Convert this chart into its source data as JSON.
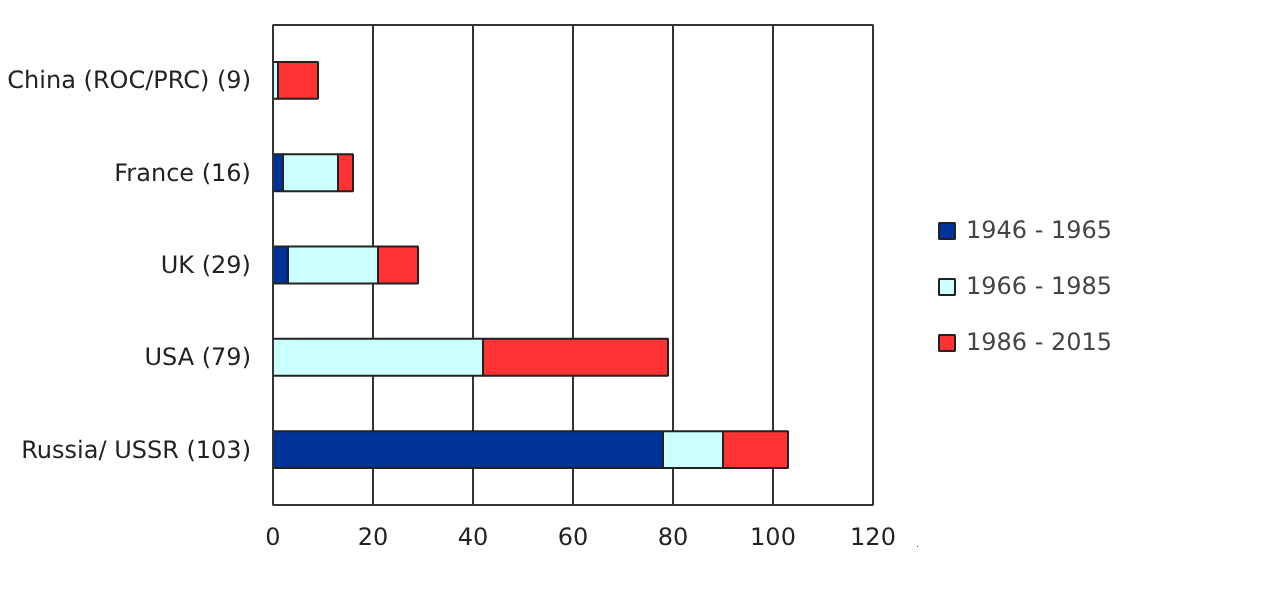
{
  "chart_data": {
    "type": "bar",
    "orientation": "horizontal",
    "stacked": true,
    "categories": [
      "China (ROC/PRC) (9)",
      "France (16)",
      "UK (29)",
      "USA (79)",
      "Russia/ USSR (103)"
    ],
    "series": [
      {
        "name": "1946 - 1965",
        "color": "#003399",
        "values": [
          0,
          2,
          3,
          0,
          78
        ]
      },
      {
        "name": "1966 - 1985",
        "color": "#ccffff",
        "values": [
          1,
          11,
          18,
          42,
          12
        ]
      },
      {
        "name": "1986 - 2015",
        "color": "#ff3333",
        "values": [
          8,
          3,
          8,
          37,
          13
        ]
      }
    ],
    "xlim": [
      0,
      120
    ],
    "xticks": [
      0,
      20,
      40,
      60,
      80,
      100,
      120
    ],
    "grid": "x",
    "legend": "right"
  }
}
